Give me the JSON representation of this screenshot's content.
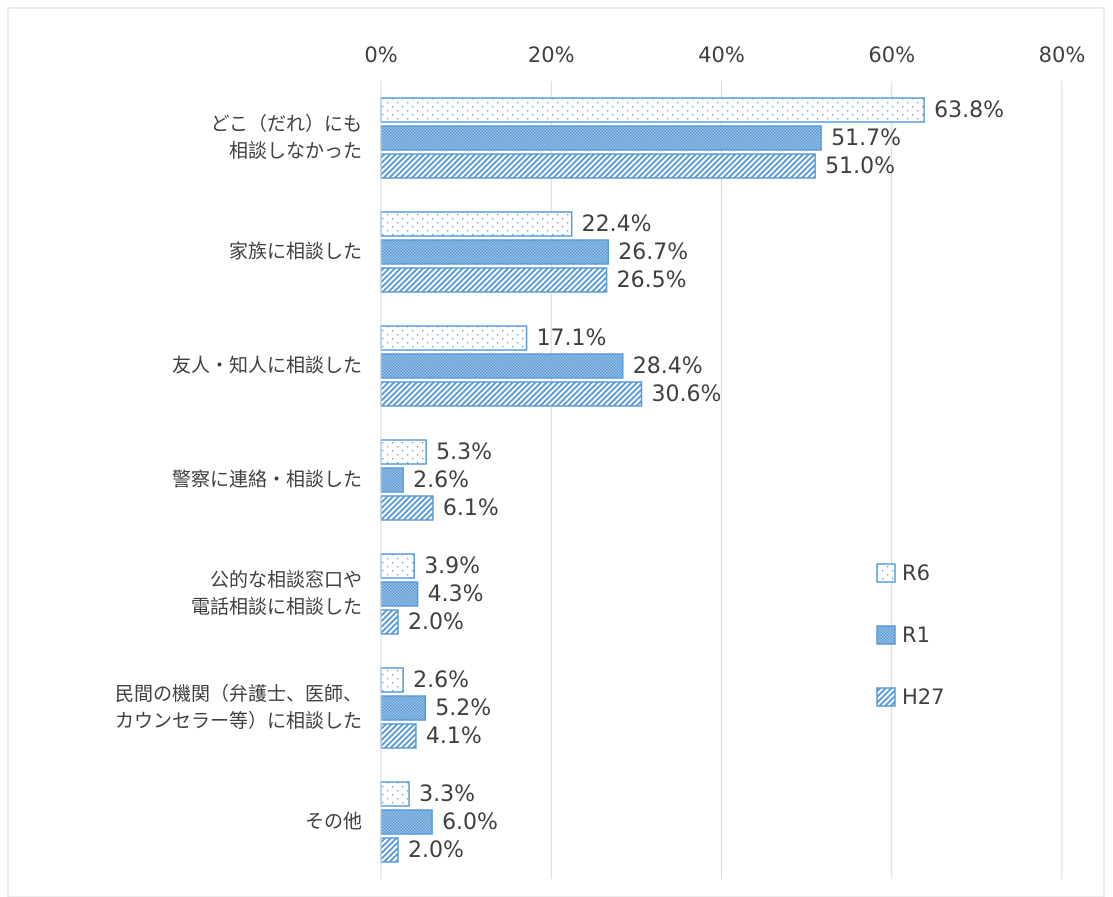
{
  "chart_data": {
    "type": "bar",
    "orientation": "horizontal",
    "categories": [
      "どこ（だれ）にも\n相談しなかった",
      "家族に相談した",
      "友人・知人に相談した",
      "警察に連絡・相談した",
      "公的な相談窓口や\n電話相談に相談した",
      "民間の機関（弁護士、医師、\nカウンセラー等）に相談した",
      "その他"
    ],
    "series": [
      {
        "name": "R6",
        "color": "#5b9bd5",
        "pattern": "dots",
        "values": [
          63.8,
          22.4,
          17.1,
          5.3,
          3.9,
          2.6,
          3.3
        ],
        "value_labels": [
          "63.8%",
          "22.4%",
          "17.1%",
          "5.3%",
          "3.9%",
          "2.6%",
          "3.3%"
        ]
      },
      {
        "name": "R1",
        "color": "#5b9bd5",
        "pattern": "crosshatch",
        "values": [
          51.7,
          26.7,
          28.4,
          2.6,
          4.3,
          5.2,
          6.0
        ],
        "value_labels": [
          "51.7%",
          "26.7%",
          "28.4%",
          "2.6%",
          "4.3%",
          "5.2%",
          "6.0%"
        ]
      },
      {
        "name": "H27",
        "color": "#5b9bd5",
        "pattern": "diagonal",
        "values": [
          51.0,
          26.5,
          30.6,
          6.1,
          2.0,
          4.1,
          2.0
        ],
        "value_labels": [
          "51.0%",
          "26.5%",
          "30.6%",
          "6.1%",
          "2.0%",
          "4.1%",
          "2.0%"
        ]
      }
    ],
    "xlim": [
      0,
      80
    ],
    "xticks": [
      {
        "value": 0,
        "label": "0%"
      },
      {
        "value": 20,
        "label": "20%"
      },
      {
        "value": 40,
        "label": "40%"
      },
      {
        "value": 60,
        "label": "60%"
      },
      {
        "value": 80,
        "label": "80%"
      }
    ],
    "grid": true,
    "legend": "right"
  }
}
